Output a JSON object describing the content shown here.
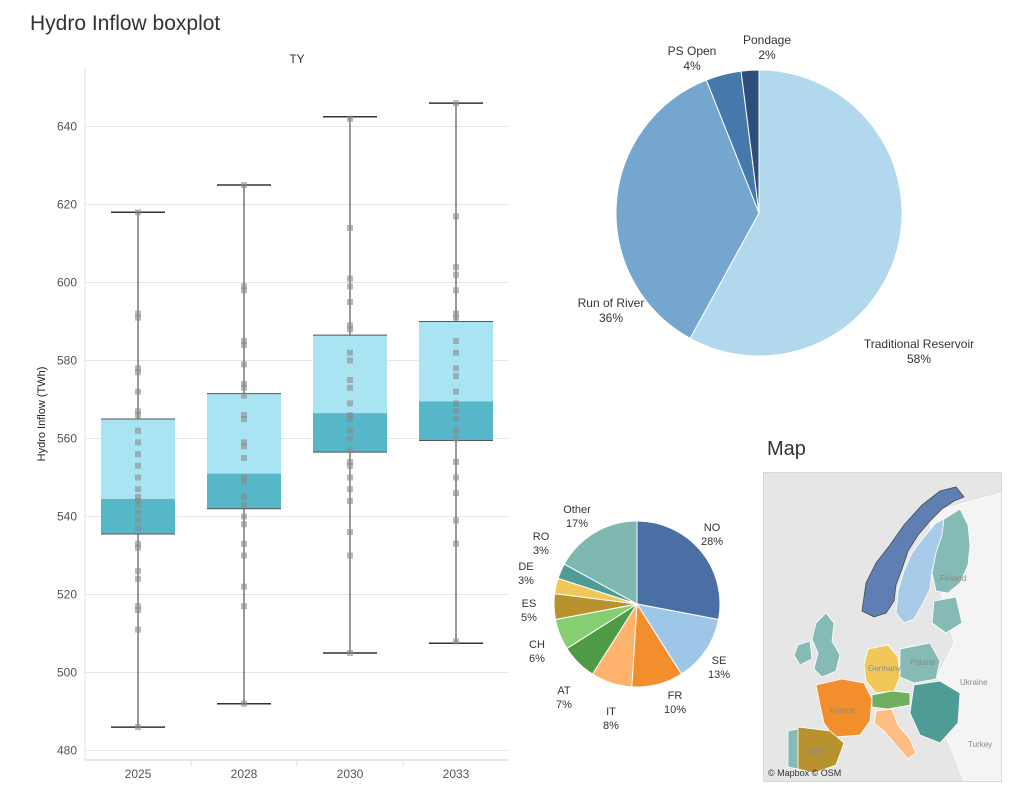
{
  "page_title": "Hydro Inflow boxplot",
  "map": {
    "title": "Map",
    "credit": "© Mapbox  © OSM",
    "labels": [
      "Finland",
      "Poland",
      "Ukraine",
      "Turkey",
      "Germany",
      "France",
      "Spain"
    ]
  },
  "colors": {
    "box_upper": "#a9e4f2",
    "box_lower": "#56b7c9",
    "point": "#8a8a8a",
    "whisker": "#333333",
    "grid": "#e6e6e6"
  },
  "chart_data": [
    {
      "type": "boxplot",
      "title": "TY",
      "ylabel": "Hydro Inflow (TWh)",
      "ylim": [
        475,
        655
      ],
      "yticks": [
        480,
        500,
        520,
        540,
        560,
        580,
        600,
        620,
        640
      ],
      "categories": [
        "2025",
        "2028",
        "2030",
        "2033"
      ],
      "boxes": [
        {
          "category": "2025",
          "min": 486,
          "q1": 535.5,
          "median": 544.5,
          "q3": 565,
          "max": 618,
          "points": [
            618,
            592,
            591,
            578,
            577,
            572,
            567,
            566,
            562,
            559,
            556,
            553,
            550,
            547,
            545,
            544,
            543,
            541,
            539,
            537,
            533,
            532,
            526,
            524,
            517,
            516,
            511,
            486
          ]
        },
        {
          "category": "2028",
          "min": 492,
          "q1": 542,
          "median": 551,
          "q3": 571.5,
          "max": 625,
          "points": [
            625,
            599,
            598,
            585,
            584,
            579,
            574,
            573,
            571,
            566,
            565,
            559,
            558,
            555,
            550,
            549,
            545,
            543,
            540,
            538,
            533,
            530,
            522,
            517,
            492
          ]
        },
        {
          "category": "2030",
          "min": 505,
          "q1": 556.5,
          "median": 566.5,
          "q3": 586.5,
          "max": 642.5,
          "points": [
            642,
            614,
            601,
            599,
            595,
            589,
            588,
            582,
            580,
            575,
            573,
            569,
            566,
            565,
            562,
            560,
            557,
            554,
            553,
            550,
            547,
            544,
            536,
            530,
            505
          ]
        },
        {
          "category": "2033",
          "min": 507.5,
          "q1": 559.5,
          "median": 569.5,
          "q3": 590,
          "max": 646,
          "points": [
            646,
            617,
            604,
            602,
            598,
            592,
            591,
            585,
            582,
            578,
            576,
            572,
            569,
            567,
            565,
            562,
            560,
            554,
            550,
            546,
            539,
            533,
            508
          ]
        }
      ]
    },
    {
      "type": "pie",
      "labels": [
        "Pondage",
        "PS Open",
        "Run of River",
        "Traditional Reservoir"
      ],
      "values": [
        2,
        4,
        36,
        58
      ],
      "value_labels": [
        "2%",
        "4%",
        "36%",
        "58%"
      ],
      "colors": [
        "#2d4e78",
        "#4579ab",
        "#74a6d0",
        "#b2d8ee"
      ]
    },
    {
      "type": "pie",
      "labels": [
        "NO",
        "SE",
        "FR",
        "IT",
        "AT",
        "CH",
        "ES",
        "DE",
        "RO",
        "Other"
      ],
      "values": [
        28,
        13,
        10,
        8,
        7,
        6,
        5,
        3,
        3,
        17
      ],
      "value_labels": [
        "28%",
        "13%",
        "10%",
        "8%",
        "7%",
        "6%",
        "5%",
        "3%",
        "3%",
        "17%"
      ],
      "colors": [
        "#4a6fa5",
        "#9dc6e8",
        "#f28e2b",
        "#ffb26b",
        "#4f9a45",
        "#86ce72",
        "#b8922c",
        "#f0c85a",
        "#4f9c97",
        "#7fb8b0"
      ]
    }
  ]
}
